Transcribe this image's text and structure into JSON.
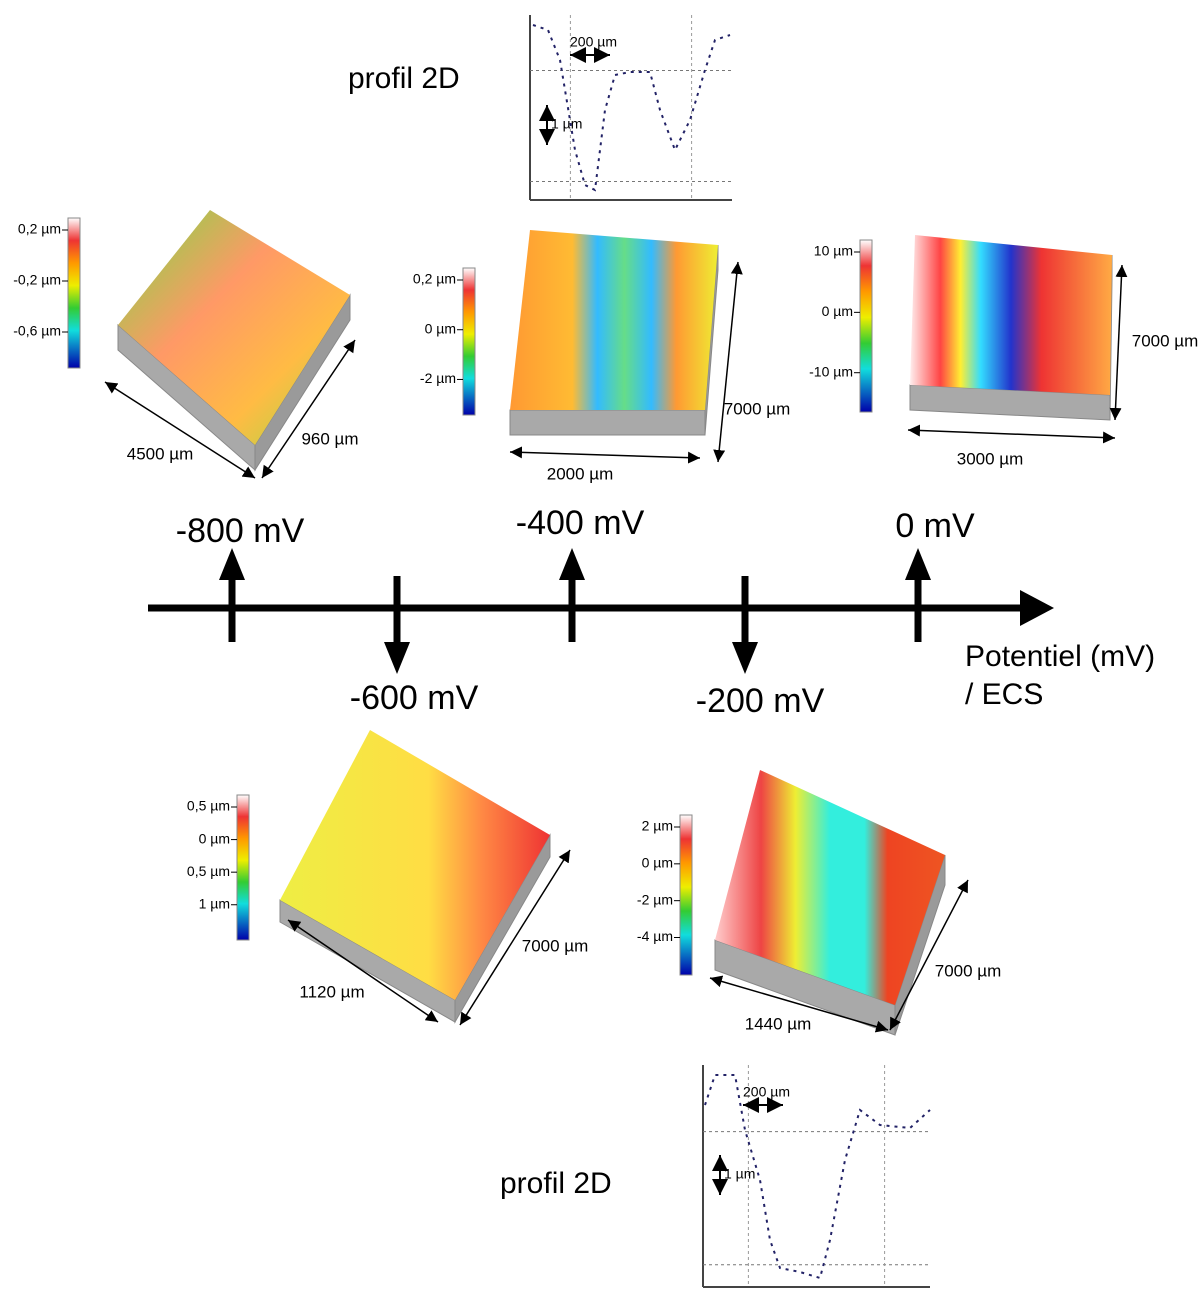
{
  "axis": {
    "label_lines": [
      "Potentiel (mV)",
      "/ ECS"
    ]
  },
  "potentials": [
    "-800 mV",
    "-600 mV",
    "-400 mV",
    "-200 mV",
    "0 mV"
  ],
  "profiles": [
    {
      "title": "profil 2D",
      "width_scale": "200 µm",
      "height_scale": "1 µm"
    },
    {
      "title": "profil 2D",
      "width_scale": "200 µm",
      "height_scale": "1 µm"
    }
  ],
  "surfaces": [
    {
      "colorbar": [
        "0,2 µm",
        "-0,2 µm",
        "-0,6 µm"
      ],
      "width": "4500 µm",
      "depth": "960 µm"
    },
    {
      "colorbar": [
        "0,2 µm",
        "0 µm",
        "-2 µm"
      ],
      "width": "2000 µm",
      "depth": "7000 µm"
    },
    {
      "colorbar": [
        "10 µm",
        "0 µm",
        "-10 µm"
      ],
      "width": "3000 µm",
      "depth": "7000 µm"
    },
    {
      "colorbar": [
        "0,5 µm",
        "0 µm",
        "0,5 µm",
        "1 µm"
      ],
      "width": "1120 µm",
      "depth": "7000 µm"
    },
    {
      "colorbar": [
        "2 µm",
        "0 µm",
        "-2 µm",
        "-4 µm"
      ],
      "width": "1440 µm",
      "depth": "7000 µm"
    }
  ]
}
